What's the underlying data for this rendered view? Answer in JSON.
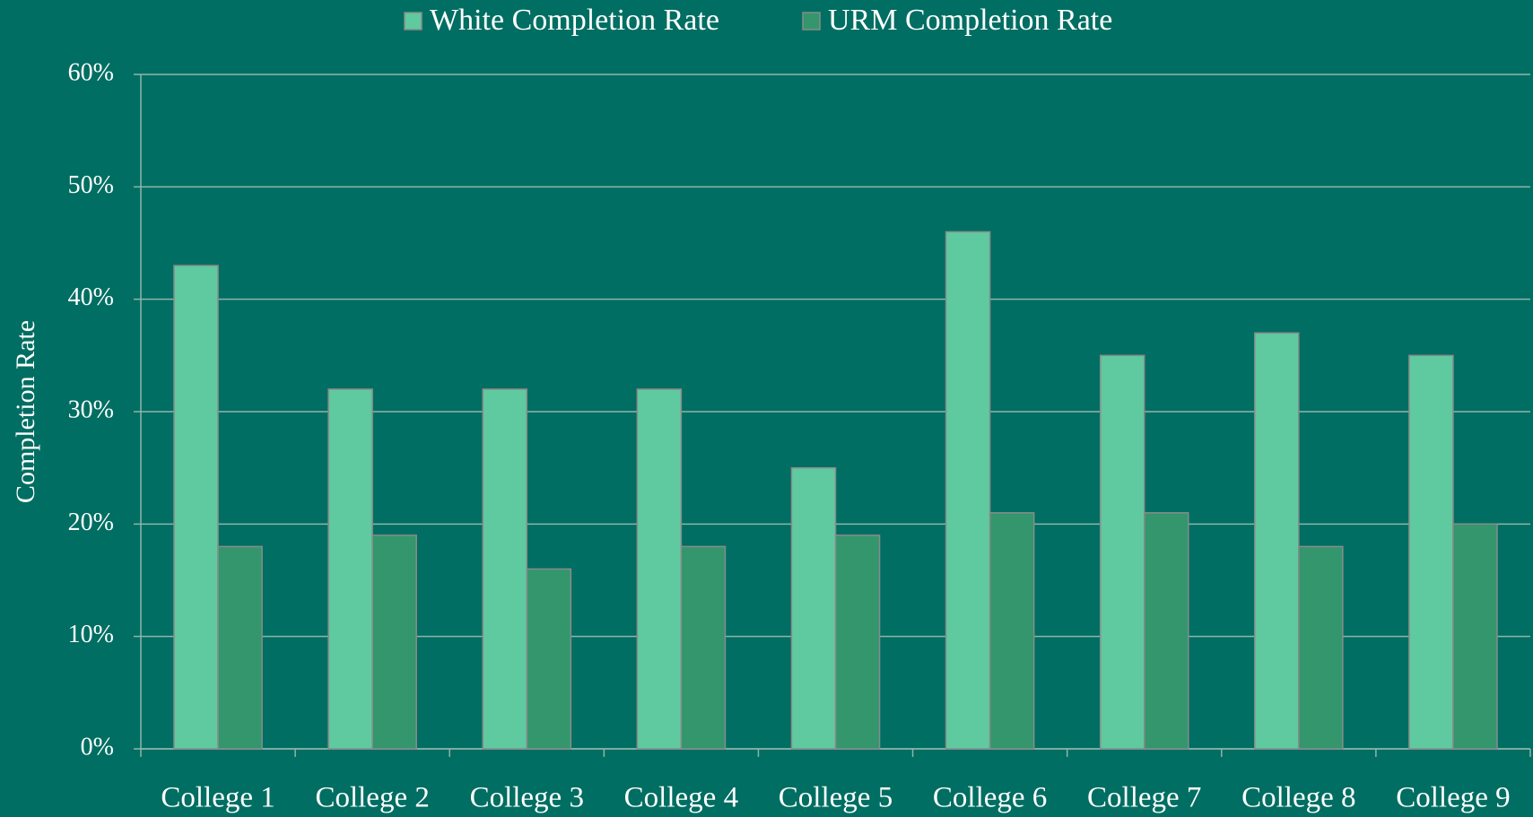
{
  "chart_data": {
    "type": "bar",
    "categories": [
      "College 1",
      "College 2",
      "College 3",
      "College 4",
      "College 5",
      "College 6",
      "College 7",
      "College 8",
      "College 9"
    ],
    "series": [
      {
        "name": "White Completion Rate",
        "color": "#5fc9a0",
        "values": [
          43,
          32,
          32,
          32,
          25,
          46,
          35,
          37,
          35
        ]
      },
      {
        "name": "URM Completion Rate",
        "color": "#33966d",
        "values": [
          18,
          19,
          16,
          18,
          19,
          21,
          21,
          18,
          20
        ]
      }
    ],
    "y_label": "Completion Rate",
    "ylim": [
      0,
      60
    ],
    "yticks": [
      {
        "value": 0,
        "label": "0%"
      },
      {
        "value": 10,
        "label": "10%"
      },
      {
        "value": 20,
        "label": "20%"
      },
      {
        "value": 30,
        "label": "30%"
      },
      {
        "value": 40,
        "label": "40%"
      },
      {
        "value": 50,
        "label": "50%"
      },
      {
        "value": 60,
        "label": "60%"
      }
    ],
    "grid": true,
    "legend": "top"
  }
}
